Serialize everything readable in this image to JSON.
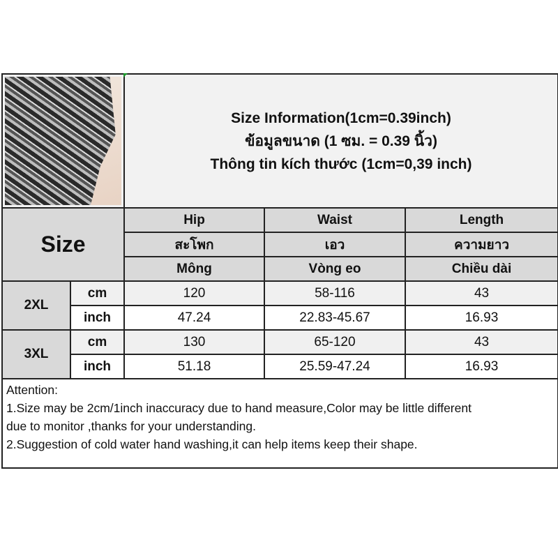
{
  "title": {
    "line1": "Size Information(1cm=0.39inch)",
    "line2": "ข้อมูลขนาด (1 ซม. = 0.39 นิ้ว)",
    "line3": "Thông tin kích thước (1cm=0,39 inch)"
  },
  "size_header": "Size",
  "columns": [
    {
      "en": "Hip",
      "th": "สะโพก",
      "vi": "Mông"
    },
    {
      "en": "Waist",
      "th": "เอว",
      "vi": "Vòng eo"
    },
    {
      "en": "Length",
      "th": "ความยาว",
      "vi": "Chiều dài"
    }
  ],
  "rows": [
    {
      "size": "2XL",
      "cm": {
        "unit": "cm",
        "values": [
          "120",
          "58-116",
          "43"
        ]
      },
      "inch": {
        "unit": "inch",
        "values": [
          "47.24",
          "22.83-45.67",
          "16.93"
        ]
      }
    },
    {
      "size": "3XL",
      "cm": {
        "unit": "cm",
        "values": [
          "130",
          "65-120",
          "43"
        ]
      },
      "inch": {
        "unit": "inch",
        "values": [
          "51.18",
          "25.59-47.24",
          "16.93"
        ]
      }
    }
  ],
  "notes": {
    "heading": "Attention:",
    "line1": "1.Size may be 2cm/1inch inaccuracy due to hand measure,Color may be little different",
    "line2": "due to monitor ,thanks for your understanding.",
    "line3": "2.Suggestion of cold water hand washing,it can help items keep their shape."
  },
  "colors": {
    "header_bg": "#d9d9d9",
    "title_bg": "#f2f2f2",
    "cm_row_bg": "#f0f0f0",
    "border": "#222222"
  }
}
